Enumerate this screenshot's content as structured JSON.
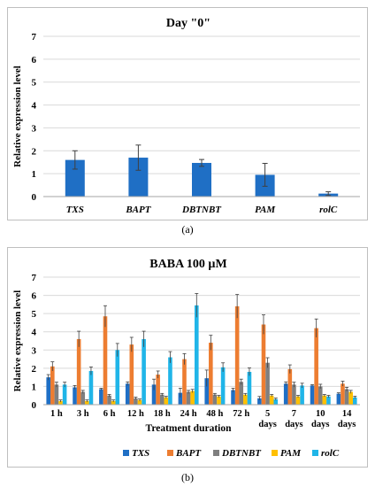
{
  "captions": {
    "a": "(a)",
    "b": "(b)"
  },
  "colors": {
    "TXS": "#1f6fc5",
    "BAPT": "#ed7d31",
    "DBTNBT": "#7f7f7f",
    "PAM": "#ffc000",
    "rolC": "#20b5e8",
    "grid": "#d9d9d9",
    "error": "#404040"
  },
  "chart_data": [
    {
      "type": "bar",
      "title": "Day \"0\"",
      "xlabel": "",
      "ylabel": "Relative expression level",
      "ylim": [
        0,
        7
      ],
      "yticks": [
        "0",
        "1",
        "2",
        "3",
        "4",
        "5",
        "6",
        "7"
      ],
      "grid": true,
      "categories": [
        "TXS",
        "BAPT",
        "DBTNBT",
        "PAM",
        "rolC"
      ],
      "values": [
        1.6,
        1.7,
        1.47,
        0.95,
        0.13
      ],
      "errors": [
        0.4,
        0.55,
        0.15,
        0.5,
        0.08
      ]
    },
    {
      "type": "bar",
      "title": "BABA 100 µM",
      "xlabel": "Treatment duration",
      "ylabel": "Relative expression level",
      "ylim": [
        0,
        7
      ],
      "yticks": [
        "0",
        "1",
        "2",
        "3",
        "4",
        "5",
        "6",
        "7"
      ],
      "grid": true,
      "legend_position": "bottom",
      "categories": [
        [
          "1 h"
        ],
        [
          "3 h"
        ],
        [
          "6 h"
        ],
        [
          "12 h"
        ],
        [
          "18 h"
        ],
        [
          "24 h"
        ],
        [
          "48 h"
        ],
        [
          "72 h"
        ],
        [
          "5",
          "days"
        ],
        [
          "7",
          "days"
        ],
        [
          "10",
          "days"
        ],
        [
          "14",
          "days"
        ]
      ],
      "series": [
        {
          "name": "TXS",
          "values": [
            1.5,
            0.95,
            0.85,
            1.15,
            1.1,
            0.65,
            1.45,
            0.8,
            0.35,
            1.15,
            1.05,
            0.6
          ],
          "errors": [
            0.15,
            0.1,
            0.05,
            0.1,
            0.3,
            0.25,
            0.45,
            0.1,
            0.1,
            0.1,
            0.05,
            0.05
          ]
        },
        {
          "name": "BAPT",
          "values": [
            2.1,
            3.6,
            4.85,
            3.3,
            1.65,
            2.5,
            3.4,
            5.4,
            4.4,
            1.95,
            4.2,
            1.15
          ]
        },
        {
          "name": "DBTNBT",
          "values": [
            1.1,
            0.7,
            0.5,
            0.35,
            0.55,
            0.7,
            0.55,
            1.25,
            2.3,
            1.1,
            1.0,
            0.85
          ]
        },
        {
          "name": "PAM",
          "values": [
            0.2,
            0.2,
            0.2,
            0.25,
            0.4,
            0.75,
            0.45,
            0.55,
            0.5,
            0.45,
            0.5,
            0.7
          ]
        },
        {
          "name": "rolC",
          "values": [
            1.1,
            1.85,
            3.0,
            3.6,
            2.6,
            5.45,
            2.05,
            1.8,
            0.3,
            1.05,
            0.45,
            0.4
          ]
        }
      ]
    }
  ]
}
